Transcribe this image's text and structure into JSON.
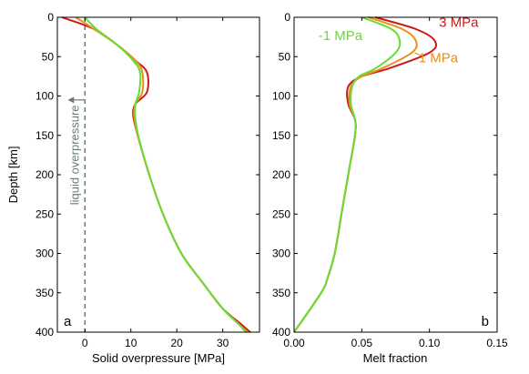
{
  "chart_data": [
    {
      "type": "line",
      "panel_label": "a",
      "xlabel": "Solid overpressure [MPa]",
      "ylabel": "Depth [km]",
      "xlim": [
        -6,
        38
      ],
      "ylim": [
        400,
        0
      ],
      "xticks": [
        0,
        10,
        20,
        30
      ],
      "yticks": [
        0,
        50,
        100,
        150,
        200,
        250,
        300,
        350,
        400
      ],
      "grid": false,
      "annotation": {
        "text": "liquid overpressure",
        "x": 0,
        "arrow_depth": 105,
        "color": "#6c7a7a"
      },
      "series": [
        {
          "color": "#cc1a1a",
          "x": [
            -5,
            2,
            7,
            11,
            13.5,
            13.5,
            11,
            10.5,
            11.5,
            14,
            17,
            21,
            26,
            30,
            34,
            36
          ],
          "y": [
            0,
            15,
            35,
            55,
            70,
            95,
            110,
            125,
            150,
            200,
            250,
            300,
            340,
            370,
            390,
            400
          ]
        },
        {
          "color": "#e8901c",
          "x": [
            -2,
            2,
            7,
            11,
            12.5,
            12.5,
            11,
            10.7,
            11.5,
            14,
            17,
            21,
            26,
            30,
            33.5,
            35.5
          ],
          "y": [
            0,
            15,
            35,
            55,
            70,
            95,
            110,
            125,
            150,
            200,
            250,
            300,
            340,
            370,
            390,
            400
          ]
        },
        {
          "color": "#66dd33",
          "x": [
            0,
            2.5,
            7,
            10.5,
            12,
            11.8,
            11,
            10.9,
            11.6,
            14,
            17,
            21,
            26,
            30,
            33.5,
            35
          ],
          "y": [
            0,
            15,
            35,
            55,
            70,
            95,
            110,
            125,
            150,
            200,
            250,
            300,
            340,
            370,
            390,
            400
          ]
        }
      ]
    },
    {
      "type": "line",
      "panel_label": "b",
      "xlabel": "Melt fraction",
      "xlim": [
        0.0,
        0.15
      ],
      "ylim": [
        400,
        0
      ],
      "xticks": [
        0.0,
        0.05,
        0.1,
        0.15
      ],
      "xticklabels": [
        "0.00",
        "0.05",
        "0.10",
        "0.15"
      ],
      "yticks": [
        0,
        50,
        100,
        150,
        200,
        250,
        300,
        350,
        400
      ],
      "grid": false,
      "series": [
        {
          "name": "3 MPa",
          "color": "#cc1a1a",
          "x": [
            0.06,
            0.09,
            0.104,
            0.1,
            0.07,
            0.05,
            0.04,
            0.04,
            0.045,
            0.045,
            0.04,
            0.035,
            0.03,
            0.025,
            0.02,
            0.0
          ],
          "y": [
            0,
            15,
            30,
            45,
            65,
            75,
            88,
            110,
            130,
            150,
            200,
            250,
            300,
            330,
            350,
            400
          ]
        },
        {
          "name": "1 MPa",
          "color": "#e8901c",
          "x": [
            0.055,
            0.08,
            0.09,
            0.087,
            0.065,
            0.05,
            0.042,
            0.041,
            0.045,
            0.045,
            0.04,
            0.035,
            0.03,
            0.025,
            0.02,
            0.0
          ],
          "y": [
            0,
            15,
            30,
            45,
            65,
            75,
            88,
            110,
            130,
            150,
            200,
            250,
            300,
            330,
            350,
            400
          ]
        },
        {
          "name": "-1 MPa",
          "color": "#66dd33",
          "x": [
            0.05,
            0.072,
            0.078,
            0.075,
            0.06,
            0.048,
            0.043,
            0.042,
            0.045,
            0.045,
            0.04,
            0.035,
            0.03,
            0.025,
            0.02,
            0.0
          ],
          "y": [
            0,
            15,
            30,
            45,
            65,
            75,
            88,
            110,
            130,
            150,
            200,
            250,
            300,
            330,
            350,
            400
          ]
        }
      ]
    }
  ]
}
